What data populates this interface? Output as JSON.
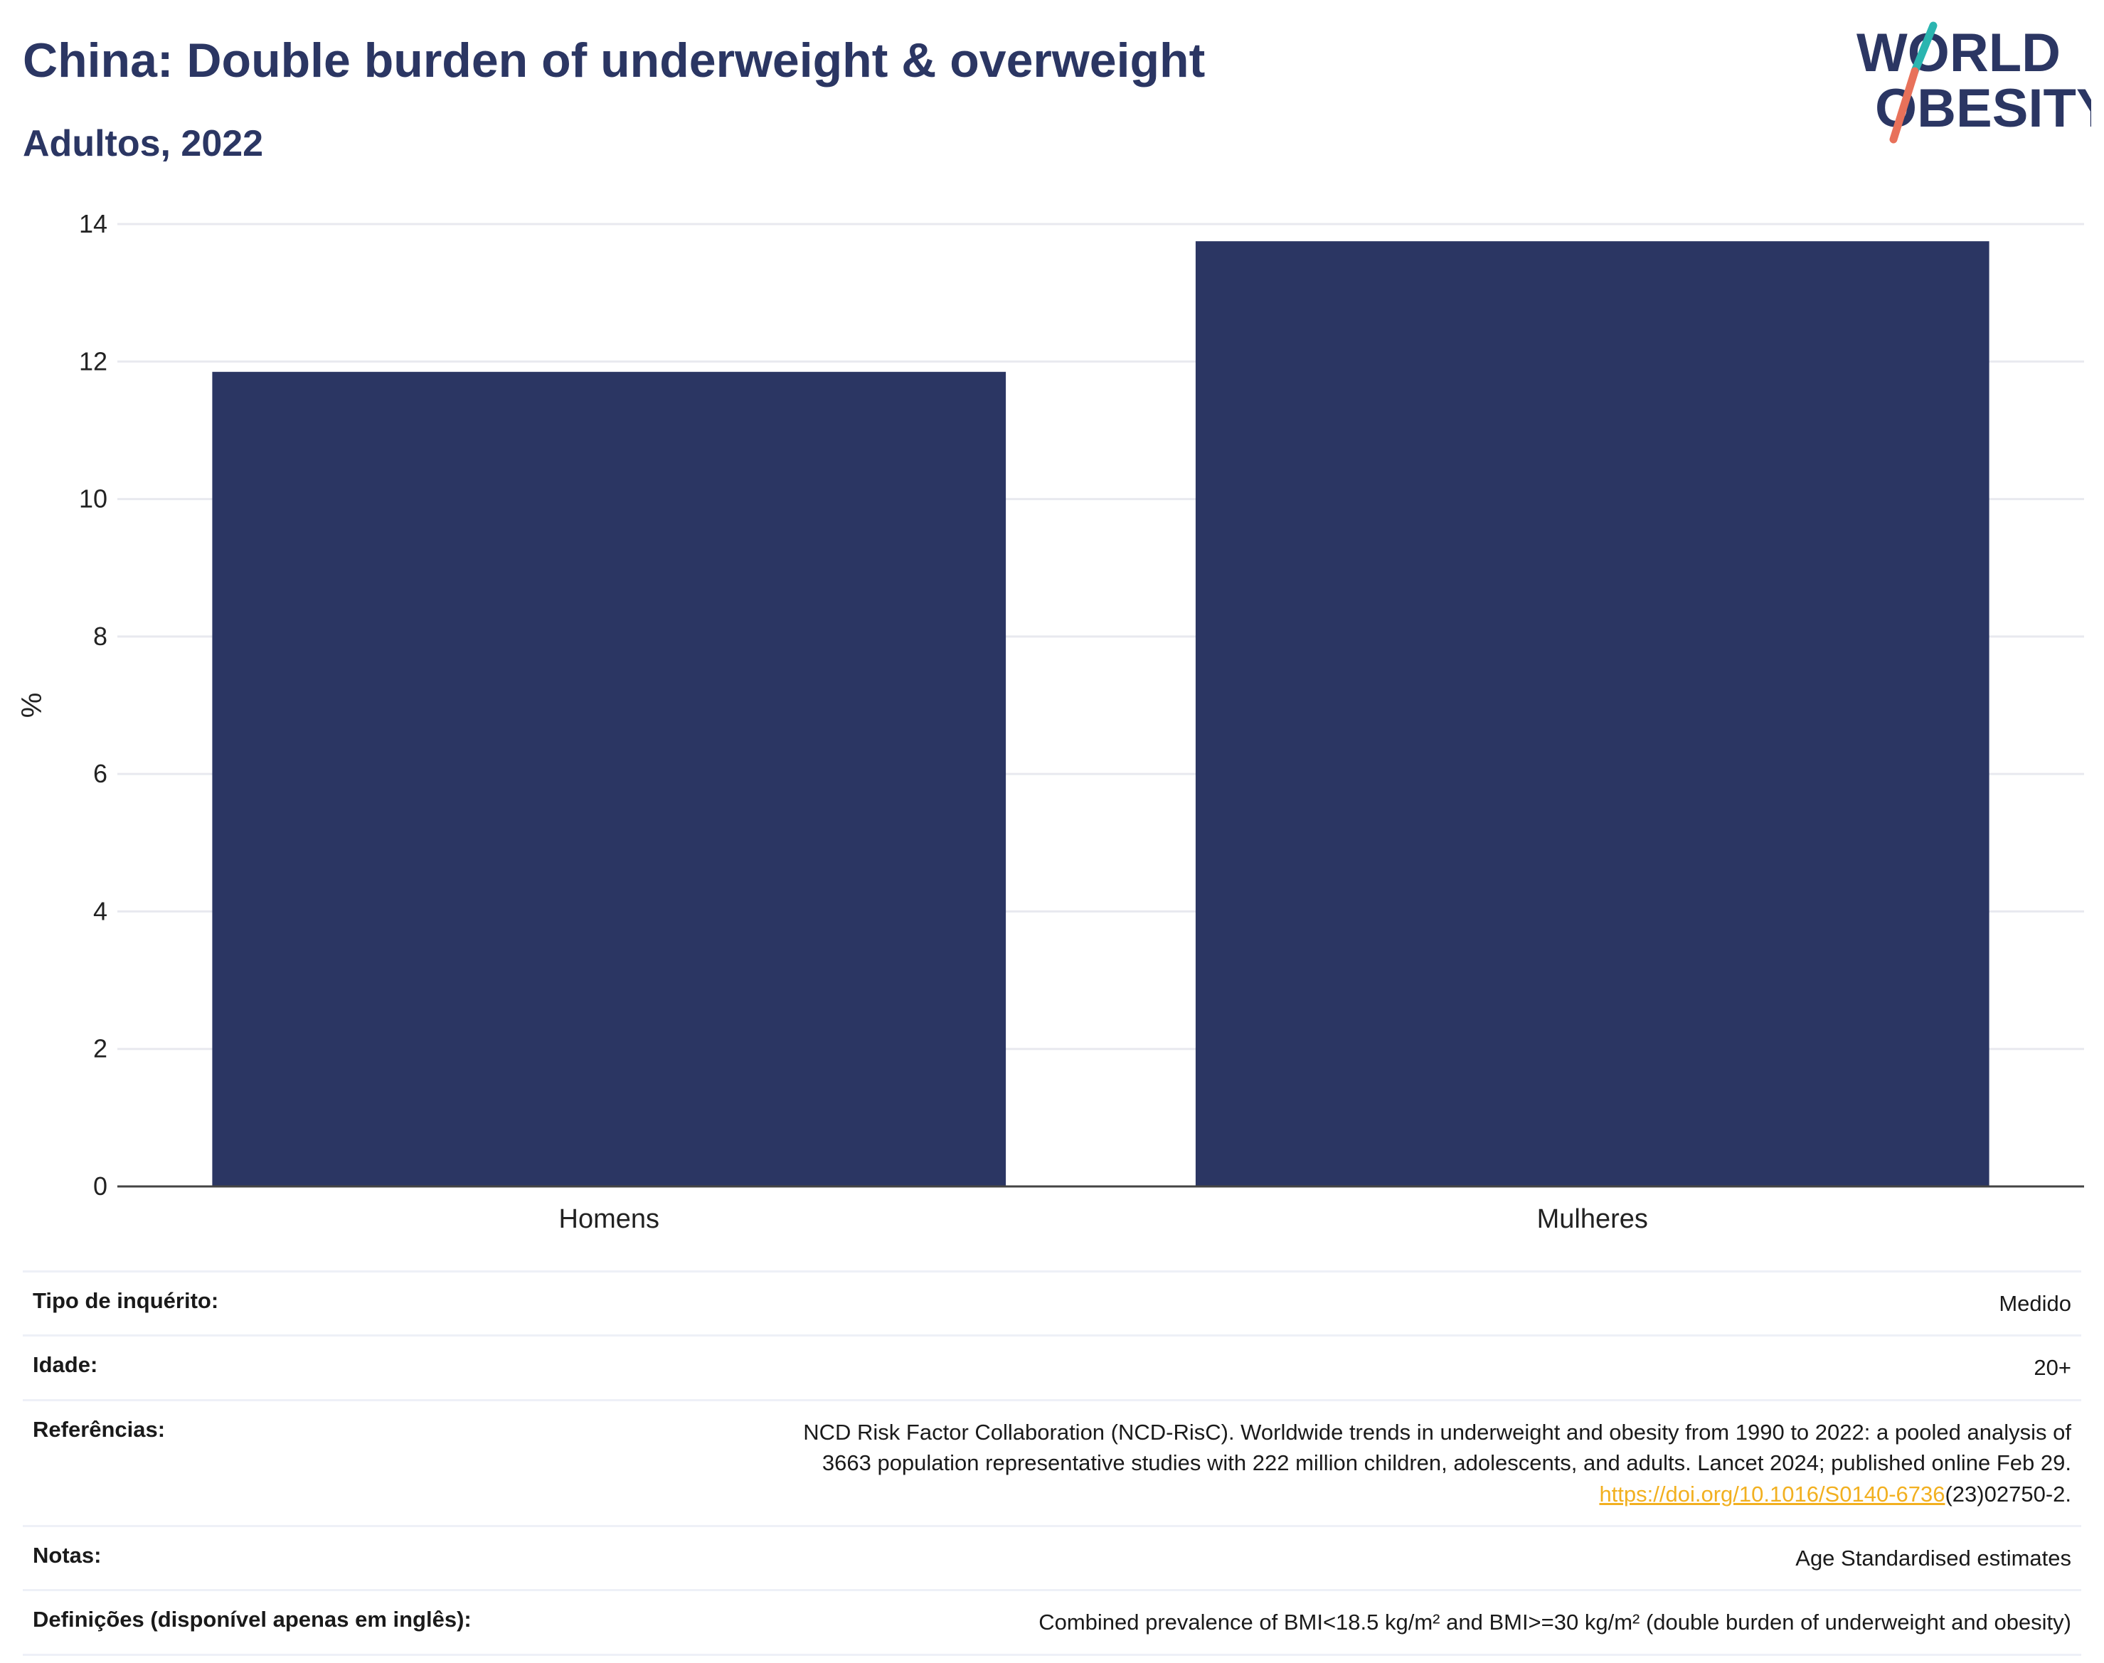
{
  "header": {
    "title": "China: Double burden of underweight & overweight",
    "subtitle": "Adultos, 2022"
  },
  "logo": {
    "line1": "WORLD",
    "line2": "OBESITY",
    "colors": {
      "text": "#2b3663",
      "slash_top": "#2bb5b0",
      "slash_bottom": "#e8715a"
    }
  },
  "chart_data": {
    "type": "bar",
    "categories": [
      "Homens",
      "Mulheres"
    ],
    "values": [
      11.85,
      13.75
    ],
    "title": "China: Double burden of underweight & overweight",
    "subtitle": "Adultos, 2022",
    "xlabel": "",
    "ylabel": "%",
    "ylim": [
      0,
      14
    ],
    "yticks": [
      0,
      2,
      4,
      6,
      8,
      10,
      12,
      14
    ],
    "grid": true,
    "legend": "none",
    "bar_color": "#2b3663"
  },
  "info": {
    "rows": [
      {
        "key": "Tipo de inquérito:",
        "value": "Medido"
      },
      {
        "key": "Idade:",
        "value": "20+"
      },
      {
        "key": "Referências:",
        "value_lines": [
          "NCD Risk Factor Collaboration (NCD-RisC). Worldwide trends in underweight and obesity from 1990 to 2022: a pooled analysis of",
          "3663 population representative studies with 222 million children, adolescents, and adults. Lancet 2024; published online Feb 29."
        ],
        "link_text": "https://doi.org/10.1016/S0140-6736",
        "link_suffix": "(23)02750-2."
      },
      {
        "key": "Notas:",
        "value": "Age Standardised estimates"
      },
      {
        "key": "Definições (disponível apenas em inglês):",
        "value": "Combined prevalence of BMI<18.5 kg/m² and BMI>=30 kg/m² (double burden of underweight and obesity)"
      }
    ]
  }
}
